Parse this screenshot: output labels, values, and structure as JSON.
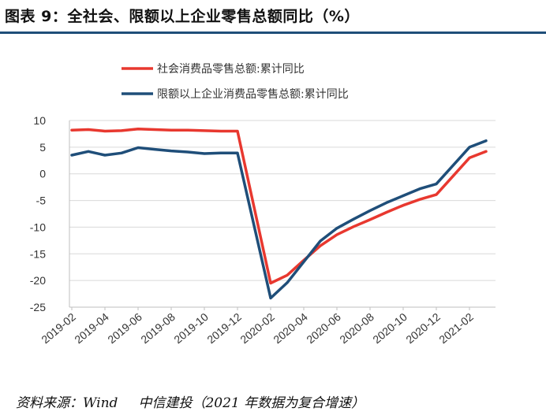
{
  "title": "图表 9：全社会、限额以上企业零售总额同比（%）",
  "footer": {
    "source": "资料来源：Wind",
    "org": "中信建投（2021 年数据为复合增速）"
  },
  "colors": {
    "series_1": "#e8382f",
    "series_2": "#1f4e79",
    "axis": "#bfbfbf",
    "grid": "#d9d9d9",
    "title_rule": "#1f4e79"
  },
  "chart_data": {
    "type": "line",
    "grid": true,
    "legend_position": "top-left",
    "ylim": [
      -25,
      10
    ],
    "yticks": [
      "10",
      "5",
      "0",
      "-5",
      "-10",
      "-15",
      "-20",
      "-25"
    ],
    "ytick_values": [
      10,
      5,
      0,
      -5,
      -10,
      -15,
      -20,
      -25
    ],
    "xticks": [
      "2019-02",
      "2019-04",
      "2019-06",
      "2019-08",
      "2019-10",
      "2019-12",
      "2020-02",
      "2020-04",
      "2020-06",
      "2020-08",
      "2020-10",
      "2020-12",
      "2021-02"
    ],
    "x": [
      "2019-02",
      "2019-03",
      "2019-04",
      "2019-05",
      "2019-06",
      "2019-07",
      "2019-08",
      "2019-09",
      "2019-10",
      "2019-11",
      "2019-12",
      "2020-02",
      "2020-03",
      "2020-04",
      "2020-05",
      "2020-06",
      "2020-07",
      "2020-08",
      "2020-09",
      "2020-10",
      "2020-11",
      "2020-12",
      "2021-02",
      "2021-03"
    ],
    "series": [
      {
        "name": "社会消费品零售总额:累计同比",
        "values": [
          8.2,
          8.3,
          8.0,
          8.1,
          8.4,
          8.3,
          8.2,
          8.2,
          8.1,
          8.0,
          8.0,
          -20.5,
          -19.0,
          -16.2,
          -13.5,
          -11.4,
          -9.9,
          -8.6,
          -7.2,
          -5.9,
          -4.8,
          -3.9,
          3.0,
          4.2
        ]
      },
      {
        "name": "限额以上企业消费品零售总额:累计同比",
        "values": [
          3.5,
          4.2,
          3.5,
          3.9,
          4.9,
          4.6,
          4.3,
          4.1,
          3.8,
          3.9,
          3.9,
          -23.3,
          -20.4,
          -16.5,
          -12.6,
          -10.2,
          -8.5,
          -6.9,
          -5.4,
          -4.1,
          -2.8,
          -1.9,
          5.0,
          6.2
        ]
      }
    ]
  }
}
